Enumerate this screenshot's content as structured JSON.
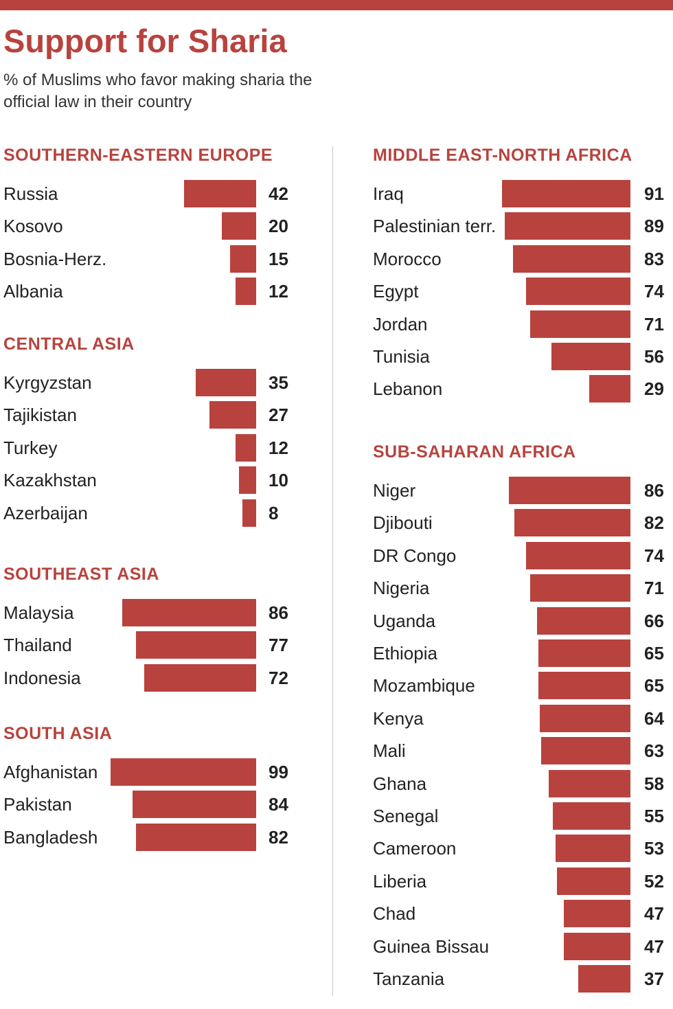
{
  "colors": {
    "accent": "#b8433e"
  },
  "chart_data": {
    "type": "bar",
    "title": "Support for Sharia",
    "subtitle": "% of Muslims who favor making sharia the official law in their country",
    "groups": [
      {
        "region": "SOUTHERN-EASTERN EUROPE",
        "categories": [
          "Russia",
          "Kosovo",
          "Bosnia-Herz.",
          "Albania"
        ],
        "values": [
          42,
          20,
          15,
          12
        ]
      },
      {
        "region": "CENTRAL ASIA",
        "categories": [
          "Kyrgyzstan",
          "Tajikistan",
          "Turkey",
          "Kazakhstan",
          "Azerbaijan"
        ],
        "values": [
          35,
          27,
          12,
          10,
          8
        ]
      },
      {
        "region": "SOUTHEAST ASIA",
        "categories": [
          "Malaysia",
          "Thailand",
          "Indonesia"
        ],
        "values": [
          86,
          77,
          72
        ]
      },
      {
        "region": "SOUTH ASIA",
        "categories": [
          "Afghanistan",
          "Pakistan",
          "Bangladesh"
        ],
        "values": [
          99,
          84,
          82
        ]
      },
      {
        "region": "MIDDLE EAST-NORTH AFRICA",
        "categories": [
          "Iraq",
          "Palestinian terr.",
          "Morocco",
          "Egypt",
          "Jordan",
          "Tunisia",
          "Lebanon"
        ],
        "values": [
          91,
          89,
          83,
          74,
          71,
          56,
          29
        ]
      },
      {
        "region": "SUB-SAHARAN AFRICA",
        "categories": [
          "Niger",
          "Djibouti",
          "DR Congo",
          "Nigeria",
          "Uganda",
          "Ethiopia",
          "Mozambique",
          "Kenya",
          "Mali",
          "Ghana",
          "Senegal",
          "Cameroon",
          "Liberia",
          "Chad",
          "Guinea Bissau",
          "Tanzania"
        ],
        "values": [
          86,
          82,
          74,
          71,
          66,
          65,
          65,
          64,
          63,
          58,
          55,
          53,
          52,
          47,
          47,
          37
        ]
      }
    ]
  }
}
